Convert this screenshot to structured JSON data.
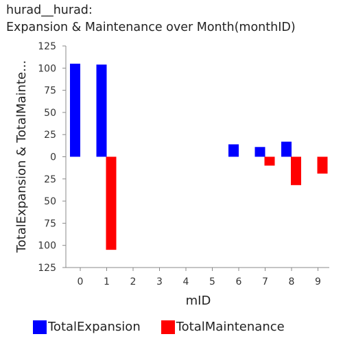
{
  "chart_data": {
    "type": "bar",
    "title_lines": [
      "hurad__hurad:",
      "Expansion & Maintenance over Month(monthID)"
    ],
    "xlabel": "mID",
    "ylabel": "TotalExpansion & TotalMainte...",
    "categories": [
      "0",
      "1",
      "2",
      "3",
      "4",
      "5",
      "6",
      "7",
      "8",
      "9"
    ],
    "series": [
      {
        "name": "TotalExpansion",
        "color": "#0000ff",
        "values": [
          105,
          104,
          0,
          0,
          0,
          0,
          14,
          11,
          17,
          0
        ]
      },
      {
        "name": "TotalMaintenance",
        "color": "#ff0000",
        "values": [
          0,
          -105,
          0,
          0,
          0,
          0,
          0,
          -10,
          -32,
          -19
        ]
      }
    ],
    "yticks": [
      125,
      100,
      75,
      50,
      25,
      0,
      -25,
      -50,
      -75,
      -100,
      -125
    ],
    "ytick_labels": [
      "125",
      "100",
      "75",
      "50",
      "25",
      "0",
      "25",
      "50",
      "75",
      "100",
      "125"
    ],
    "ylim": [
      -125,
      125
    ],
    "grid": false,
    "legend_position": "bottom"
  }
}
